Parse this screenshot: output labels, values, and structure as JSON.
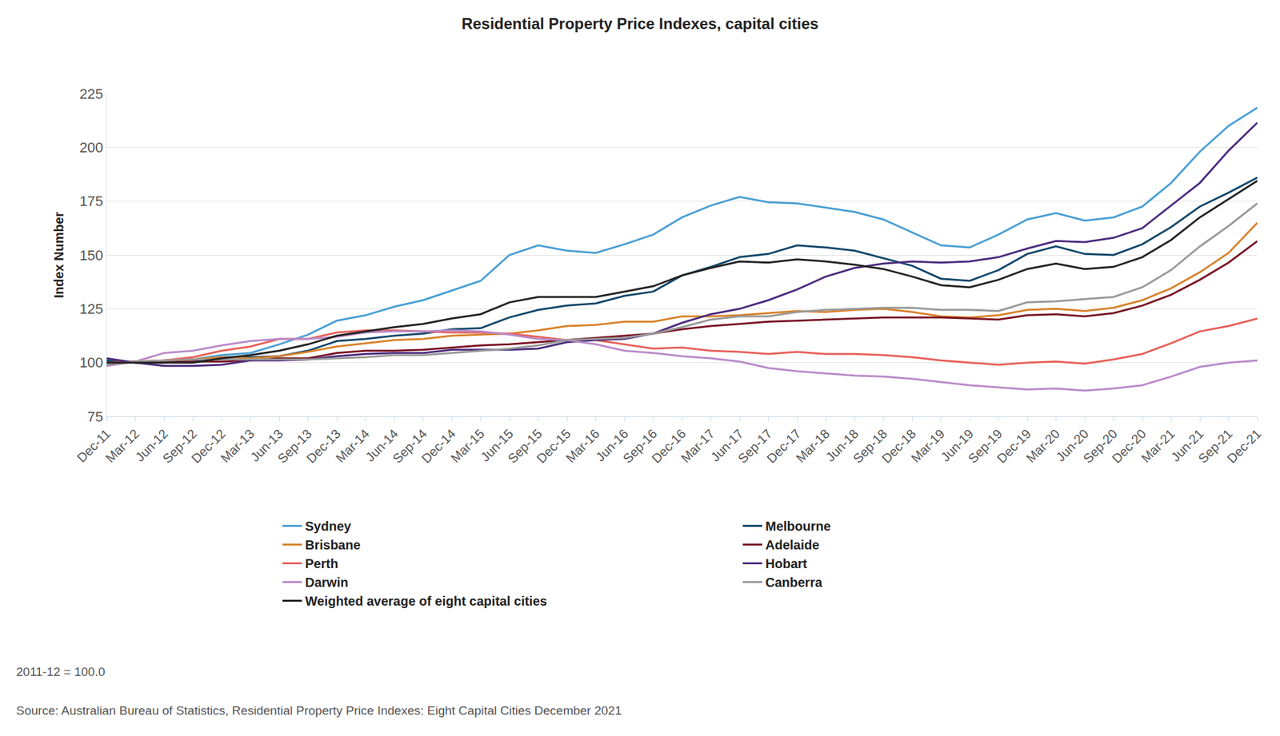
{
  "chart_data": {
    "type": "line",
    "title": "Residential Property Price Indexes, capital cities",
    "y_label": "Index Number",
    "annotations": [
      "2011-12 = 100.0",
      "Source: Australian Bureau of Statistics, Residential Property Price Indexes: Eight Capital Cities December 2021"
    ],
    "categories": [
      "Dec-11",
      "Mar-12",
      "Jun-12",
      "Sep-12",
      "Dec-12",
      "Mar-13",
      "Jun-13",
      "Sep-13",
      "Dec-13",
      "Mar-14",
      "Jun-14",
      "Sep-14",
      "Dec-14",
      "Mar-15",
      "Jun-15",
      "Sep-15",
      "Dec-15",
      "Mar-16",
      "Jun-16",
      "Sep-16",
      "Dec-16",
      "Mar-17",
      "Jun-17",
      "Sep-17",
      "Dec-17",
      "Mar-18",
      "Jun-18",
      "Sep-18",
      "Dec-18",
      "Mar-19",
      "Jun-19",
      "Sep-19",
      "Dec-19",
      "Mar-20",
      "Jun-20",
      "Sep-20",
      "Dec-20",
      "Mar-21",
      "Jun-21",
      "Sep-21",
      "Dec-21"
    ],
    "series": [
      {
        "name": "Sydney",
        "color": "#4a9fd4",
        "values": [
          100,
          100.5,
          101,
          101.5,
          103.5,
          104.5,
          108.5,
          113,
          119.5,
          122,
          126,
          129,
          133.5,
          138,
          150,
          154.5,
          152,
          151,
          155,
          159.5,
          167.5,
          173,
          177,
          174.5,
          174,
          172,
          170,
          166.5,
          160.5,
          154.5,
          153.5,
          159.5,
          166.5,
          169.5,
          166,
          167.5,
          172.5,
          183.5,
          198,
          210,
          218.5
        ]
      },
      {
        "name": "Melbourne",
        "color": "#11476a",
        "values": [
          101,
          100,
          100,
          100.5,
          102.5,
          102.5,
          103,
          105.5,
          110,
          111,
          112.5,
          113.5,
          115.5,
          116,
          121,
          124.5,
          126.5,
          127.5,
          131,
          133,
          140.5,
          144.5,
          149,
          150.5,
          154.5,
          153.5,
          152,
          148.5,
          145,
          139,
          138,
          143,
          150.5,
          154,
          150.5,
          150,
          155,
          163,
          172.5,
          179,
          186
        ]
      },
      {
        "name": "Brisbane",
        "color": "#d9822b",
        "values": [
          100,
          100.5,
          101,
          101.5,
          102.5,
          102,
          103,
          105,
          107.5,
          109,
          110.5,
          111,
          112.5,
          113,
          113.5,
          115,
          117,
          117.5,
          119,
          119,
          121.5,
          121.5,
          122,
          123,
          124,
          123.5,
          124.5,
          125,
          123.5,
          121.5,
          121,
          122,
          124.5,
          125,
          124,
          125.5,
          129,
          134.5,
          142,
          151,
          165
        ]
      },
      {
        "name": "Adelaide",
        "color": "#7a1425",
        "values": [
          100,
          100.5,
          100.5,
          100.5,
          100.5,
          101,
          102,
          102,
          104.5,
          105.5,
          105.5,
          106,
          107,
          108,
          108.5,
          109.5,
          110.5,
          111.5,
          112.5,
          113.5,
          115.5,
          117,
          118,
          119,
          119.5,
          120,
          120.5,
          121,
          121,
          121,
          120.5,
          120,
          122,
          122.5,
          121.5,
          123,
          126.5,
          131.5,
          138.5,
          146.5,
          156.5
        ]
      },
      {
        "name": "Perth",
        "color": "#e8605a",
        "values": [
          100,
          100.5,
          101,
          102.5,
          105.5,
          107.5,
          111,
          111,
          114,
          115,
          115,
          114.5,
          114,
          114,
          113.5,
          112,
          110.5,
          110.5,
          108.5,
          106.5,
          107,
          105.5,
          105,
          104,
          105,
          104,
          104,
          103.5,
          102.5,
          101,
          100,
          99,
          100,
          100.5,
          99.5,
          101.5,
          104,
          109,
          114.5,
          117,
          120.5
        ]
      },
      {
        "name": "Hobart",
        "color": "#4b2a7e",
        "values": [
          102,
          100,
          98.5,
          98.5,
          99,
          101,
          101,
          101.5,
          103,
          104,
          104.5,
          104.5,
          106,
          106,
          106,
          106.5,
          109.5,
          110.5,
          111,
          113.5,
          118.5,
          122.5,
          125,
          129,
          134,
          140,
          144,
          146,
          147,
          146.5,
          147,
          149,
          153,
          156.5,
          156,
          158,
          162.5,
          173,
          183.5,
          198.5,
          211.5
        ]
      },
      {
        "name": "Darwin",
        "color": "#b98ac9",
        "values": [
          98.5,
          100.5,
          104.5,
          105.5,
          108,
          110,
          111,
          111,
          112,
          114,
          114.5,
          114.5,
          115,
          114.5,
          113,
          111,
          110.5,
          108.5,
          105.5,
          104.5,
          103,
          102,
          100.5,
          97.5,
          96,
          95,
          94,
          93.5,
          92.5,
          91,
          89.5,
          88.5,
          87.5,
          88,
          87,
          88,
          89.5,
          93.5,
          98,
          100,
          101
        ]
      },
      {
        "name": "Canberra",
        "color": "#999999",
        "values": [
          99,
          100.5,
          101,
          101.5,
          101.5,
          101.5,
          101.5,
          101.5,
          102,
          102.5,
          103.5,
          103.5,
          104.5,
          105.5,
          106.5,
          108,
          110.5,
          111,
          111.5,
          113.5,
          116.5,
          120,
          121.5,
          121.5,
          123.5,
          124.5,
          125,
          125.5,
          125.5,
          124.5,
          124.5,
          124,
          128,
          128.5,
          129.5,
          130.5,
          135,
          143,
          154,
          163.5,
          174
        ]
      },
      {
        "name": "Weighted average of eight capital cities",
        "color": "#222222",
        "values": [
          100,
          100,
          100,
          100,
          102,
          103.5,
          105.5,
          108.5,
          112.5,
          114.5,
          116.5,
          118,
          120.5,
          122.5,
          128,
          130.5,
          130.5,
          130.5,
          133,
          135.5,
          140.5,
          144,
          147,
          146.5,
          148,
          147,
          145.5,
          143.5,
          140,
          136,
          135,
          138.5,
          143.5,
          146,
          143.5,
          144.5,
          149,
          157,
          167.5,
          176,
          184.5
        ]
      }
    ],
    "ylim": [
      75,
      225
    ],
    "yticks": [
      75,
      100,
      125,
      150,
      175,
      200,
      225
    ],
    "grid": "y",
    "legend": "bottom"
  }
}
